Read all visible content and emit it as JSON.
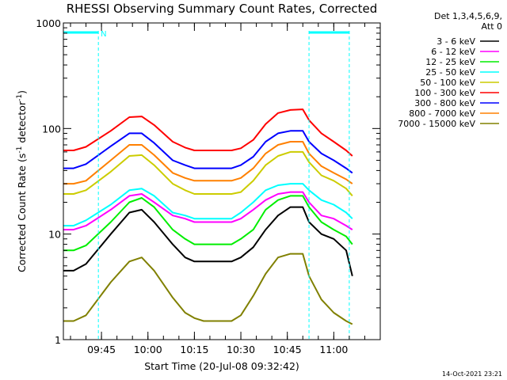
{
  "chart_data": {
    "type": "line",
    "title": "RHESSI Observing Summary Count Rates, Corrected",
    "xlabel": "Start Time (20-Jul-08 09:32:42)",
    "ylabel_prefix": "Corrected Count Rate (s",
    "ylabel_sup1": "-1",
    "ylabel_middle": " detector",
    "ylabel_sup2": "-1",
    "ylabel_suffix": ")",
    "y_scale": "log",
    "ylim": [
      1,
      1000
    ],
    "xlim": [
      "09:32:42",
      "11:15:00"
    ],
    "x_ticks": [
      "09:45",
      "10:00",
      "10:15",
      "10:30",
      "10:45",
      "11:00"
    ],
    "y_ticks": [
      "1",
      "10",
      "100",
      "1000"
    ],
    "legend_header": [
      "Det 1,3,4,5,6,9,",
      "Att 0"
    ],
    "legend_position": "right",
    "timestamp": "14-Oct-2021 23:21",
    "flag_label": "N",
    "flag_intervals": [
      [
        "09:32:42",
        "09:44:00"
      ],
      [
        "10:52:00",
        "11:05:00"
      ]
    ],
    "flag_markers": [
      "09:44:00",
      "10:52:00",
      "11:05:00"
    ],
    "series": [
      {
        "name": "3 - 6 keV",
        "color": "#000000",
        "values": [
          4.5,
          4.5,
          5.2,
          10,
          16,
          17,
          13,
          8,
          6,
          5.5,
          5.5,
          5.5,
          5.5,
          5.5,
          6,
          7.5,
          11,
          15,
          18,
          18,
          13,
          10,
          9,
          7,
          4
        ]
      },
      {
        "name": "6 - 12 keV",
        "color": "#ff00ff",
        "values": [
          11,
          11,
          12,
          17,
          23,
          24,
          20,
          15,
          14,
          13,
          13,
          13,
          13,
          13,
          14,
          17,
          21,
          24,
          25,
          25,
          20,
          15,
          14,
          12,
          11
        ]
      },
      {
        "name": "12 - 25 keV",
        "color": "#00ee00",
        "values": [
          7,
          7,
          7.8,
          13,
          20,
          22,
          18,
          11,
          9,
          8,
          8,
          8,
          8,
          8,
          9,
          11,
          17,
          21,
          23,
          23,
          18,
          13,
          11,
          9.5,
          8
        ]
      },
      {
        "name": "25 - 50 keV",
        "color": "#00ffff",
        "values": [
          12,
          12,
          13.5,
          19,
          26,
          27,
          23,
          16,
          15,
          14,
          14,
          14,
          14,
          14,
          16,
          20,
          26,
          29,
          30,
          30,
          26,
          21,
          19,
          16,
          14
        ]
      },
      {
        "name": "50 - 100 keV",
        "color": "#cccc00",
        "values": [
          24,
          24,
          26,
          39,
          55,
          56,
          45,
          30,
          26,
          24,
          24,
          24,
          24,
          24,
          25,
          32,
          45,
          55,
          60,
          60,
          48,
          36,
          32,
          27,
          23
        ]
      },
      {
        "name": "100 - 300 keV",
        "color": "#ff0000",
        "values": [
          62,
          62,
          67,
          95,
          128,
          130,
          108,
          75,
          66,
          62,
          62,
          62,
          62,
          62,
          65,
          78,
          110,
          140,
          150,
          152,
          120,
          90,
          75,
          62,
          55
        ]
      },
      {
        "name": "300 - 800 keV",
        "color": "#0000ff",
        "values": [
          42,
          42,
          46,
          68,
          90,
          90,
          73,
          50,
          45,
          42,
          42,
          42,
          42,
          42,
          45,
          54,
          75,
          90,
          95,
          95,
          75,
          58,
          50,
          42,
          38
        ]
      },
      {
        "name": "800 - 7000 keV",
        "color": "#ff8000",
        "values": [
          30,
          30,
          32,
          50,
          70,
          70,
          56,
          38,
          34,
          32,
          32,
          32,
          32,
          32,
          34,
          42,
          58,
          70,
          75,
          75,
          58,
          44,
          38,
          33,
          30
        ]
      },
      {
        "name": "7000 - 15000 keV",
        "color": "#808000",
        "values": [
          1.5,
          1.5,
          1.7,
          3.5,
          5.5,
          6,
          4.5,
          2.5,
          1.8,
          1.6,
          1.5,
          1.5,
          1.5,
          1.5,
          1.7,
          2.6,
          4.2,
          6,
          6.5,
          6.5,
          4,
          2.4,
          1.8,
          1.5,
          1.4
        ]
      }
    ],
    "x": [
      "09:32:42",
      "09:36:00",
      "09:40:00",
      "09:48:00",
      "09:54:00",
      "09:58:00",
      "10:02:00",
      "10:08:00",
      "10:12:00",
      "10:15:00",
      "10:18:00",
      "10:21:00",
      "10:24:00",
      "10:27:00",
      "10:30:00",
      "10:34:00",
      "10:38:00",
      "10:42:00",
      "10:46:00",
      "10:50:00",
      "10:52:00",
      "10:56:00",
      "11:00:00",
      "11:04:00",
      "11:06:00"
    ]
  }
}
